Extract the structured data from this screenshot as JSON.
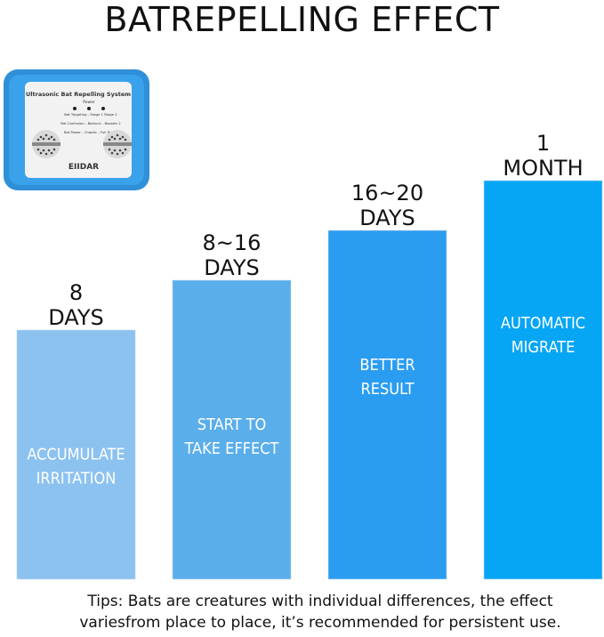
{
  "chart_data": {
    "type": "bar",
    "title": "BATREPELLING EFFECT",
    "categories": [
      {
        "line1": "8",
        "line2": "DAYS"
      },
      {
        "line1": "8~16",
        "line2": "DAYS"
      },
      {
        "line1": "16~20",
        "line2": "DAYS"
      },
      {
        "line1": "1",
        "line2": "MONTH"
      }
    ],
    "values": [
      1,
      2,
      3,
      4
    ],
    "ylim": [
      0,
      5
    ],
    "bar_labels": [
      [
        "ACCUMULATE",
        "IRRITATION"
      ],
      [
        "START TO",
        "TAKE EFFECT"
      ],
      [
        "BETTER",
        "RESULT"
      ],
      [
        "AUTOMATIC",
        "MIGRATE"
      ]
    ],
    "colors": [
      "#8cc2f0",
      "#5aaeea",
      "#2b9df0",
      "#07a6f5"
    ]
  },
  "device": {
    "title": "Ultrasonic Bat Repelling System",
    "power_label": "Power",
    "row1": "Bat Targeting - Stage 1 Stage 2",
    "row2": "Bat Confusion - Balance - Booster 2",
    "row3": "Bat Power - Chaotic - Full Power",
    "brand": "EIIDAR"
  },
  "tips": {
    "line1": "Tips: Bats are creatures with individual differences, the effect",
    "line2": "variesfrom place to place, it’s recommended for persistent use."
  }
}
